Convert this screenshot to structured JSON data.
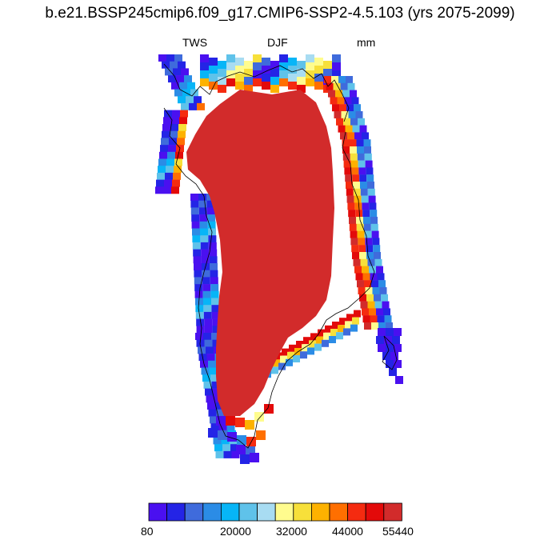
{
  "title": "b.e21.BSSP245cmip6.f09_g17.CMIP6-SSP2-4.5.103 (yrs 2075-2099)",
  "subtitle": {
    "variable": "TWS",
    "season": "DJF",
    "units": "mm"
  },
  "colorbar": {
    "colors": [
      "#4a10f0",
      "#2424e6",
      "#3f6bdc",
      "#2b8ce6",
      "#07b5f7",
      "#5fc2ea",
      "#a8dcf2",
      "#fffc8e",
      "#f7e03a",
      "#fdb200",
      "#ff6f00",
      "#f52b10",
      "#e30a0a",
      "#d22b2b"
    ],
    "labels": [
      "80",
      "20000",
      "32000",
      "44000",
      "55440"
    ]
  },
  "map": {
    "region": "Greenland",
    "dominant_color": "#d22b2b"
  }
}
